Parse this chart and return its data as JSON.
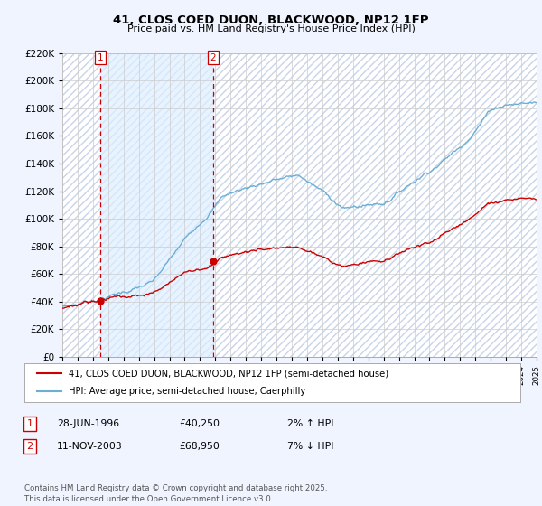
{
  "title": "41, CLOS COED DUON, BLACKWOOD, NP12 1FP",
  "subtitle": "Price paid vs. HM Land Registry's House Price Index (HPI)",
  "legend_line1": "41, CLOS COED DUON, BLACKWOOD, NP12 1FP (semi-detached house)",
  "legend_line2": "HPI: Average price, semi-detached house, Caerphilly",
  "transaction1_date": "28-JUN-1996",
  "transaction1_price": "£40,250",
  "transaction1_hpi": "2% ↑ HPI",
  "transaction2_date": "11-NOV-2003",
  "transaction2_price": "£68,950",
  "transaction2_hpi": "7% ↓ HPI",
  "copyright": "Contains HM Land Registry data © Crown copyright and database right 2025.\nThis data is licensed under the Open Government Licence v3.0.",
  "hpi_color": "#6baed6",
  "price_color": "#cc0000",
  "vline_color": "#cc0000",
  "shade_color": "#ddeeff",
  "grid_color": "#cccccc",
  "hatch_color": "#c8d4e8",
  "bg_color": "#f0f4ff",
  "plot_bg": "#ffffff",
  "ylim_min": 0,
  "ylim_max": 220000,
  "yticks": [
    0,
    20000,
    40000,
    60000,
    80000,
    100000,
    120000,
    140000,
    160000,
    180000,
    200000,
    220000
  ],
  "year_start": 1994,
  "year_end": 2025,
  "transaction1_year": 1996.49,
  "transaction2_year": 2003.86,
  "transaction1_price_val": 40250,
  "transaction2_price_val": 68950
}
